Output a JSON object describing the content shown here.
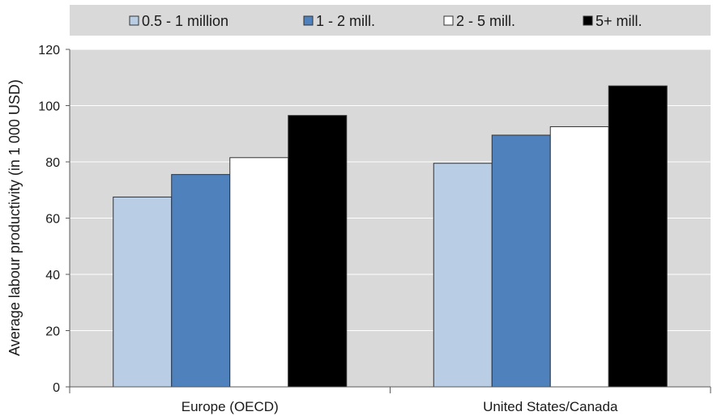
{
  "chart_data": {
    "type": "bar",
    "title": "",
    "xlabel": "",
    "ylabel": "Average labour productivity (in 1 000 USD)",
    "categories": [
      "Europe (OECD)",
      "United States/Canada"
    ],
    "series": [
      {
        "name": "0.5 - 1 million",
        "values": [
          67.5,
          79.5
        ],
        "color": "#b9cde5"
      },
      {
        "name": "1 - 2 mill.",
        "values": [
          75.5,
          89.5
        ],
        "color": "#4f81bd"
      },
      {
        "name": "2 - 5 mill.",
        "values": [
          81.5,
          92.5
        ],
        "color": "#ffffff"
      },
      {
        "name": "5+ mill.",
        "values": [
          96.5,
          107
        ],
        "color": "#000000"
      }
    ],
    "ylim": [
      0,
      120
    ],
    "yticks": [
      "0",
      "20",
      "40",
      "60",
      "80",
      "100",
      "120"
    ],
    "grid": true,
    "legend_position": "top",
    "colors": {
      "plot_background": "#d9d9d9",
      "legend_background": "#d9d9d9",
      "gridline": "#ffffff",
      "bar_outline": "#333333"
    }
  }
}
